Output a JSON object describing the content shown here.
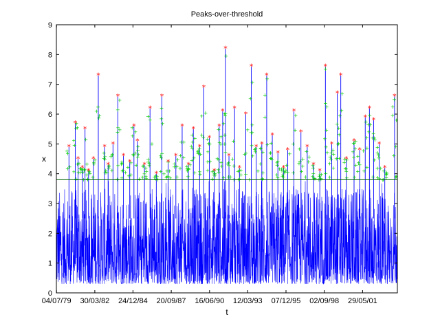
{
  "chart_data": {
    "type": "line",
    "title": "Peaks-over-threshold",
    "xlabel": "t",
    "ylabel": "x",
    "ylim": [
      0,
      9
    ],
    "yticks": [
      0,
      1,
      2,
      3,
      4,
      5,
      6,
      7,
      8,
      9
    ],
    "xlim_years": [
      1979.5,
      2003.9
    ],
    "xticks": [
      {
        "label": "04/07/79",
        "year": 1979.51
      },
      {
        "label": "30/03/82",
        "year": 1982.25
      },
      {
        "label": "24/12/84",
        "year": 1984.98
      },
      {
        "label": "20/09/87",
        "year": 1987.72
      },
      {
        "label": "16/06/90",
        "year": 1990.46
      },
      {
        "label": "12/03/93",
        "year": 1993.19
      },
      {
        "label": "07/12/95",
        "year": 1995.93
      },
      {
        "label": "02/09/98",
        "year": 1998.67
      },
      {
        "label": "29/05/01",
        "year": 2001.41
      }
    ],
    "threshold": 3.8,
    "grid": false,
    "colors": {
      "series": "#0000ff",
      "threshold": "#006400",
      "exceedance_markers": "#00cc00",
      "peak_markers": "#ff0000"
    },
    "peaks": [
      {
        "year": 1980.4,
        "value": 4.9
      },
      {
        "year": 1980.85,
        "value": 5.7
      },
      {
        "year": 1981.05,
        "value": 4.5
      },
      {
        "year": 1981.35,
        "value": 4.2
      },
      {
        "year": 1981.55,
        "value": 5.5
      },
      {
        "year": 1981.8,
        "value": 4.1
      },
      {
        "year": 1982.15,
        "value": 4.5
      },
      {
        "year": 1982.5,
        "value": 7.3
      },
      {
        "year": 1982.95,
        "value": 4.9
      },
      {
        "year": 1983.2,
        "value": 4.3
      },
      {
        "year": 1983.55,
        "value": 5.0
      },
      {
        "year": 1983.9,
        "value": 6.6
      },
      {
        "year": 1984.3,
        "value": 4.6
      },
      {
        "year": 1984.75,
        "value": 4.4
      },
      {
        "year": 1985.05,
        "value": 5.6
      },
      {
        "year": 1985.3,
        "value": 5.1
      },
      {
        "year": 1985.8,
        "value": 4.3
      },
      {
        "year": 1986.2,
        "value": 6.2
      },
      {
        "year": 1986.65,
        "value": 4.0
      },
      {
        "year": 1987.05,
        "value": 6.6
      },
      {
        "year": 1987.5,
        "value": 4.4
      },
      {
        "year": 1988.05,
        "value": 4.6
      },
      {
        "year": 1988.5,
        "value": 5.6
      },
      {
        "year": 1988.95,
        "value": 4.3
      },
      {
        "year": 1989.3,
        "value": 5.5
      },
      {
        "year": 1989.75,
        "value": 4.9
      },
      {
        "year": 1990.05,
        "value": 6.9
      },
      {
        "year": 1990.45,
        "value": 5.2
      },
      {
        "year": 1990.8,
        "value": 4.1
      },
      {
        "year": 1991.15,
        "value": 5.6
      },
      {
        "year": 1991.4,
        "value": 6.1
      },
      {
        "year": 1991.6,
        "value": 8.2
      },
      {
        "year": 1991.85,
        "value": 4.6
      },
      {
        "year": 1992.25,
        "value": 6.2
      },
      {
        "year": 1992.6,
        "value": 4.2
      },
      {
        "year": 1993.05,
        "value": 6.0
      },
      {
        "year": 1993.45,
        "value": 7.6
      },
      {
        "year": 1993.8,
        "value": 4.9
      },
      {
        "year": 1994.2,
        "value": 5.0
      },
      {
        "year": 1994.55,
        "value": 7.3
      },
      {
        "year": 1994.95,
        "value": 5.3
      },
      {
        "year": 1995.35,
        "value": 4.7
      },
      {
        "year": 1995.75,
        "value": 4.2
      },
      {
        "year": 1996.05,
        "value": 4.8
      },
      {
        "year": 1996.5,
        "value": 6.1
      },
      {
        "year": 1997.0,
        "value": 5.4
      },
      {
        "year": 1997.45,
        "value": 4.9
      },
      {
        "year": 1997.9,
        "value": 4.3
      },
      {
        "year": 1998.35,
        "value": 4.1
      },
      {
        "year": 1998.75,
        "value": 7.6
      },
      {
        "year": 1999.2,
        "value": 5.0
      },
      {
        "year": 1999.6,
        "value": 6.7
      },
      {
        "year": 1999.85,
        "value": 7.3
      },
      {
        "year": 2000.25,
        "value": 4.5
      },
      {
        "year": 2000.8,
        "value": 5.1
      },
      {
        "year": 2001.2,
        "value": 4.8
      },
      {
        "year": 2001.6,
        "value": 5.9
      },
      {
        "year": 2001.9,
        "value": 6.2
      },
      {
        "year": 2002.2,
        "value": 5.8
      },
      {
        "year": 2002.6,
        "value": 5.0
      },
      {
        "year": 2003.0,
        "value": 4.2
      },
      {
        "year": 2003.7,
        "value": 6.6
      }
    ]
  }
}
